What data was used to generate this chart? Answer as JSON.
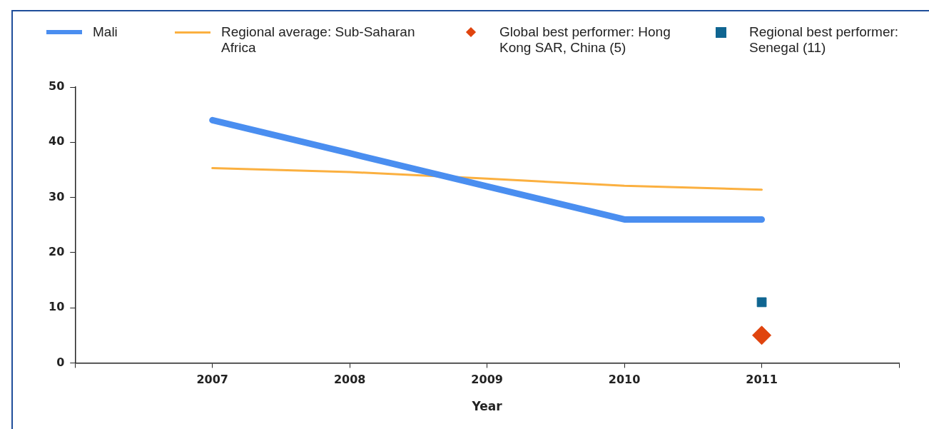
{
  "chart_data": {
    "type": "line",
    "xlabel": "Year",
    "x": [
      2007,
      2008,
      2009,
      2010,
      2011
    ],
    "series": [
      {
        "name": "Mali",
        "color": "#4a8ef0",
        "values": [
          44,
          38,
          32,
          26,
          26
        ],
        "marker": "none"
      },
      {
        "name": "Regional average: Sub-Saharan Africa",
        "color": "#fbb040",
        "values": [
          35.3,
          34.6,
          33.4,
          32.1,
          31.4
        ],
        "marker": "none"
      },
      {
        "name": "Global best performer: Hong Kong SAR, China (5)",
        "type": "scatter",
        "color": "#e0440e",
        "x": [
          2011
        ],
        "values": [
          5
        ],
        "marker": "diamond"
      },
      {
        "name": "Regional best performer: Senegal (11)",
        "type": "scatter",
        "color": "#0f6591",
        "x": [
          2011
        ],
        "values": [
          11
        ],
        "marker": "square"
      }
    ],
    "xlim": [
      2006,
      2012
    ],
    "xticks": [
      {
        "value": 2006,
        "label": null
      },
      2007,
      2008,
      2009,
      2010,
      2011,
      {
        "value": 2012,
        "label": null
      }
    ],
    "ylim": [
      0,
      50
    ],
    "yticks": [
      0,
      10,
      20,
      30,
      40,
      50
    ],
    "grid": false,
    "legend": "top"
  }
}
